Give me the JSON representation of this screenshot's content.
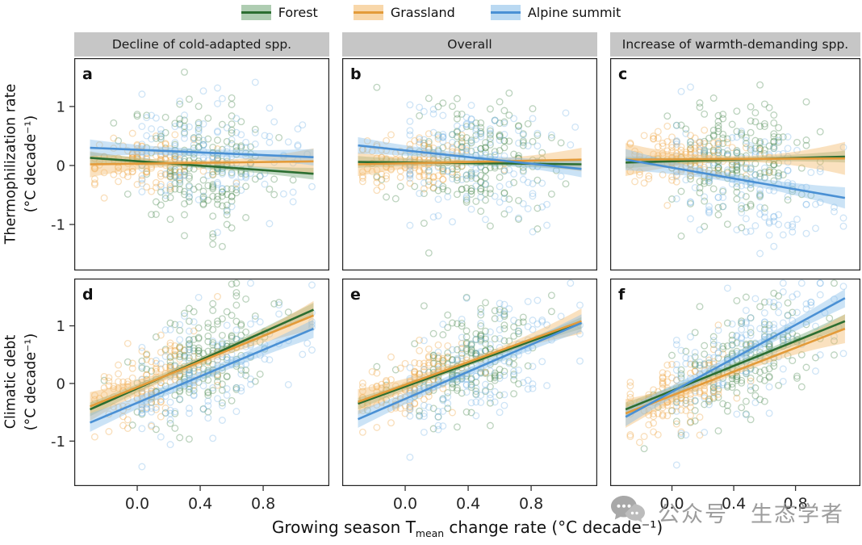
{
  "watermark": {
    "text1": "公众号",
    "text2": "生态学者"
  },
  "chart_data": {
    "type": "scatter",
    "facets": [
      "Decline of cold-adapted spp.",
      "Overall",
      "Increase of warmth-demanding spp."
    ],
    "legend": [
      {
        "label": "Forest",
        "line": "#2c6e31",
        "point": "#4e8c55",
        "band": "#79ab7e"
      },
      {
        "label": "Grassland",
        "line": "#e39b3a",
        "point": "#f0a84a",
        "band": "#f4bd72"
      },
      {
        "label": "Alpine summit",
        "line": "#4a90d4",
        "point": "#7db8e8",
        "band": "#8cc0ea"
      }
    ],
    "axis": {
      "x_title": {
        "pre": "Growing season T",
        "sub": "mean",
        "post": " change rate (°C decade⁻¹)"
      },
      "x_ticks": {
        "values": [
          0,
          0.4,
          0.8
        ],
        "labels": [
          "0.0",
          "0.4",
          "0.8"
        ]
      },
      "y_ticks": {
        "values": [
          -1,
          0,
          1
        ],
        "labels": [
          "-1",
          "0",
          "1"
        ]
      },
      "xlim": [
        -0.4,
        1.22
      ],
      "ylim": [
        -1.78,
        1.82
      ],
      "reg_x_range": [
        -0.3,
        1.12
      ],
      "row_titles": [
        [
          "Thermophilization rate",
          "(°C decade⁻¹)"
        ],
        [
          "Climatic debt",
          "(°C decade⁻¹)"
        ]
      ]
    },
    "panels": [
      {
        "id": "a",
        "facet": "Decline of cold-adapted spp.",
        "row_var": "Thermophilization rate",
        "series": [
          {
            "name": "Forest",
            "reg": [
              0.13,
              -0.14
            ],
            "band": [
              0.04,
              0.1
            ],
            "pts": {
              "n": 195,
              "xm": 0.42,
              "xs": 0.22,
              "xr": [
                -0.28,
                1.05
              ],
              "ys": 0.52
            }
          },
          {
            "name": "Grassland",
            "reg": [
              0.02,
              0.07
            ],
            "band": [
              0.04,
              0.22
            ],
            "pts": {
              "n": 130,
              "xm": 0.05,
              "xs": 0.2,
              "xr": [
                -0.28,
                0.62
              ],
              "ys": 0.22
            }
          },
          {
            "name": "Alpine summit",
            "reg": [
              0.3,
              0.14
            ],
            "band": [
              0.06,
              0.14
            ],
            "pts": {
              "n": 150,
              "xm": 0.45,
              "xs": 0.3,
              "xr": [
                0.02,
                1.12
              ],
              "ys": 0.5
            }
          }
        ]
      },
      {
        "id": "b",
        "facet": "Overall",
        "row_var": "Thermophilization rate",
        "series": [
          {
            "name": "Forest",
            "reg": [
              0.06,
              0.02
            ],
            "band": [
              0.04,
              0.1
            ],
            "pts": {
              "n": 195,
              "xm": 0.42,
              "xs": 0.22,
              "xr": [
                -0.28,
                1.05
              ],
              "ys": 0.48
            }
          },
          {
            "name": "Grassland",
            "reg": [
              0.02,
              0.1
            ],
            "band": [
              0.04,
              0.2
            ],
            "pts": {
              "n": 130,
              "xm": 0.05,
              "xs": 0.2,
              "xr": [
                -0.28,
                0.62
              ],
              "ys": 0.22
            }
          },
          {
            "name": "Alpine summit",
            "reg": [
              0.34,
              -0.06
            ],
            "band": [
              0.06,
              0.14
            ],
            "pts": {
              "n": 150,
              "xm": 0.45,
              "xs": 0.3,
              "xr": [
                0.02,
                1.12
              ],
              "ys": 0.48
            }
          }
        ]
      },
      {
        "id": "c",
        "facet": "Increase of warmth-demanding spp.",
        "row_var": "Thermophilization rate",
        "series": [
          {
            "name": "Forest",
            "reg": [
              0.05,
              0.15
            ],
            "band": [
              0.04,
              0.1
            ],
            "pts": {
              "n": 195,
              "xm": 0.42,
              "xs": 0.22,
              "xr": [
                -0.28,
                1.05
              ],
              "ys": 0.5
            }
          },
          {
            "name": "Grassland",
            "reg": [
              0.1,
              0.12
            ],
            "band": [
              0.05,
              0.28
            ],
            "pts": {
              "n": 130,
              "xm": 0.05,
              "xs": 0.2,
              "xr": [
                -0.28,
                0.62
              ],
              "ys": 0.22
            }
          },
          {
            "name": "Alpine summit",
            "reg": [
              0.1,
              -0.55
            ],
            "band": [
              0.07,
              0.18
            ],
            "pts": {
              "n": 150,
              "xm": 0.48,
              "xs": 0.3,
              "xr": [
                0.02,
                1.12
              ],
              "ys": 0.5
            }
          }
        ]
      },
      {
        "id": "d",
        "facet": "Decline of cold-adapted spp.",
        "row_var": "Climatic debt",
        "series": [
          {
            "name": "Forest",
            "reg": [
              -0.45,
              1.28
            ],
            "band": [
              0.05,
              0.12
            ],
            "pts": {
              "n": 195,
              "xm": 0.42,
              "xs": 0.22,
              "xr": [
                -0.28,
                1.05
              ],
              "ys": 0.45
            }
          },
          {
            "name": "Grassland",
            "reg": [
              -0.4,
              1.18
            ],
            "band": [
              0.06,
              0.25
            ],
            "pts": {
              "n": 130,
              "xm": 0.05,
              "xs": 0.2,
              "xr": [
                -0.28,
                0.62
              ],
              "ys": 0.3
            }
          },
          {
            "name": "Alpine summit",
            "reg": [
              -0.68,
              0.95
            ],
            "band": [
              0.08,
              0.16
            ],
            "pts": {
              "n": 150,
              "xm": 0.45,
              "xs": 0.3,
              "xr": [
                0.02,
                1.12
              ],
              "ys": 0.48
            }
          }
        ]
      },
      {
        "id": "e",
        "facet": "Overall",
        "row_var": "Climatic debt",
        "series": [
          {
            "name": "Forest",
            "reg": [
              -0.35,
              1.05
            ],
            "band": [
              0.04,
              0.1
            ],
            "pts": {
              "n": 195,
              "xm": 0.42,
              "xs": 0.22,
              "xr": [
                -0.28,
                1.05
              ],
              "ys": 0.42
            }
          },
          {
            "name": "Grassland",
            "reg": [
              -0.32,
              1.08
            ],
            "band": [
              0.05,
              0.22
            ],
            "pts": {
              "n": 130,
              "xm": 0.05,
              "xs": 0.2,
              "xr": [
                -0.28,
                0.62
              ],
              "ys": 0.28
            }
          },
          {
            "name": "Alpine summit",
            "reg": [
              -0.62,
              1.05
            ],
            "band": [
              0.07,
              0.15
            ],
            "pts": {
              "n": 150,
              "xm": 0.45,
              "xs": 0.3,
              "xr": [
                0.02,
                1.12
              ],
              "ys": 0.46
            }
          }
        ]
      },
      {
        "id": "f",
        "facet": "Increase of warmth-demanding spp.",
        "row_var": "Climatic debt",
        "series": [
          {
            "name": "Forest",
            "reg": [
              -0.45,
              1.08
            ],
            "band": [
              0.05,
              0.12
            ],
            "pts": {
              "n": 195,
              "xm": 0.42,
              "xs": 0.22,
              "xr": [
                -0.28,
                1.05
              ],
              "ys": 0.44
            }
          },
          {
            "name": "Grassland",
            "reg": [
              -0.52,
              0.95
            ],
            "band": [
              0.06,
              0.25
            ],
            "pts": {
              "n": 130,
              "xm": 0.05,
              "xs": 0.2,
              "xr": [
                -0.28,
                0.62
              ],
              "ys": 0.3
            }
          },
          {
            "name": "Alpine summit",
            "reg": [
              -0.58,
              1.48
            ],
            "band": [
              0.08,
              0.16
            ],
            "pts": {
              "n": 150,
              "xm": 0.48,
              "xs": 0.3,
              "xr": [
                0.02,
                1.12
              ],
              "ys": 0.48
            }
          }
        ]
      }
    ]
  }
}
